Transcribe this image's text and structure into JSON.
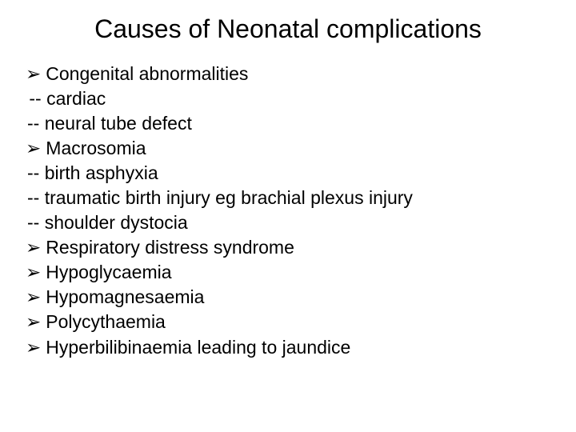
{
  "title": "Causes of Neonatal complications",
  "items": [
    {
      "type": "bullet",
      "text": "Congenital abnormalities"
    },
    {
      "type": "dash-indent",
      "text": "cardiac"
    },
    {
      "type": "dash",
      "text": "neural tube defect"
    },
    {
      "type": "bullet",
      "text": "Macrosomia"
    },
    {
      "type": "dash",
      "text": "birth asphyxia"
    },
    {
      "type": "dash",
      "text": "traumatic birth injury eg brachial plexus injury"
    },
    {
      "type": "dash",
      "text": "shoulder dystocia"
    },
    {
      "type": "bullet",
      "text": "Respiratory distress syndrome"
    },
    {
      "type": "bullet",
      "text": "Hypoglycaemia"
    },
    {
      "type": "bullet",
      "text": "Hypomagnesaemia"
    },
    {
      "type": "bullet",
      "text": "Polycythaemia"
    },
    {
      "type": "bullet",
      "text": "Hyperbilibinaemia leading to jaundice"
    }
  ],
  "bullet_glyph": "➢",
  "dash_glyph": "--",
  "colors": {
    "background": "#ffffff",
    "text": "#000000"
  },
  "font": {
    "title_size": 32,
    "body_size": 23
  }
}
